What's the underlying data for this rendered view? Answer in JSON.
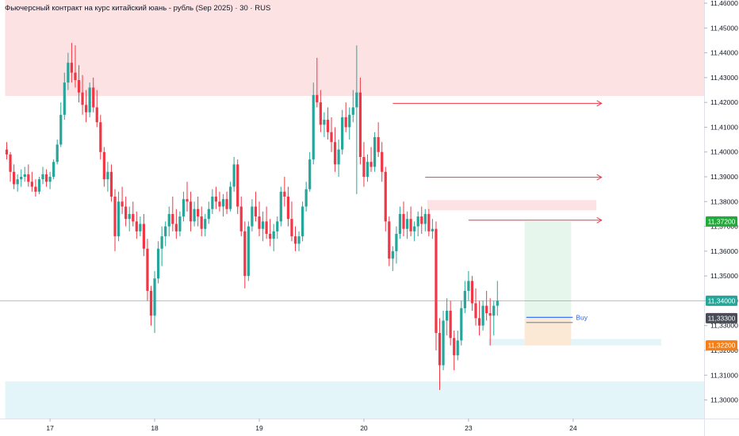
{
  "title": "Фьючерсный контракт на курс китайский юань - рубль (Sep 2025) · 30 · RUS",
  "colors": {
    "up": "#26a69a",
    "down": "#f23645",
    "supply_zone": "#fde2e4",
    "demand_zone": "#e3f5f8",
    "target_zone": "#e6f6ec",
    "stop_zone": "#fbe9d6",
    "current_line": "#26a69a",
    "level_arrow": "#f23645",
    "entry_line": "#2962ff",
    "axis_border": "#e0e3eb"
  },
  "chart_data": {
    "type": "candlestick",
    "ylim": [
      11.2925,
      11.4613
    ],
    "y_ticks": [
      "11,46000",
      "11,45000",
      "11,44000",
      "11,43000",
      "11,42000",
      "11,41000",
      "11,40000",
      "11,39000",
      "11,38000",
      "11,37000",
      "11,36000",
      "11,35000",
      "11,34000",
      "11,33000",
      "11,32000",
      "11,31000",
      "11,30000"
    ],
    "x_ticks": [
      {
        "label": "17",
        "bar": 12
      },
      {
        "label": "18",
        "bar": 41
      },
      {
        "label": "19",
        "bar": 70
      },
      {
        "label": "20",
        "bar": 99
      },
      {
        "label": "23",
        "bar": 128
      },
      {
        "label": "24",
        "bar": 157
      }
    ],
    "bar_count": 183,
    "candles": [
      [
        11.401,
        11.404,
        11.397,
        11.399
      ],
      [
        11.399,
        11.4,
        11.388,
        11.392
      ],
      [
        11.392,
        11.395,
        11.385,
        11.387
      ],
      [
        11.387,
        11.391,
        11.384,
        11.389
      ],
      [
        11.389,
        11.393,
        11.386,
        11.39
      ],
      [
        11.39,
        11.394,
        11.388,
        11.391
      ],
      [
        11.391,
        11.395,
        11.386,
        11.388
      ],
      [
        11.388,
        11.392,
        11.384,
        11.386
      ],
      [
        11.386,
        11.389,
        11.382,
        11.384
      ],
      [
        11.384,
        11.39,
        11.383,
        11.389
      ],
      [
        11.389,
        11.394,
        11.387,
        11.391
      ],
      [
        11.391,
        11.393,
        11.386,
        11.388
      ],
      [
        11.388,
        11.392,
        11.385,
        11.39
      ],
      [
        11.39,
        11.397,
        11.389,
        11.396
      ],
      [
        11.396,
        11.405,
        11.395,
        11.403
      ],
      [
        11.403,
        11.42,
        11.402,
        11.415
      ],
      [
        11.415,
        11.432,
        11.413,
        11.428
      ],
      [
        11.428,
        11.44,
        11.425,
        11.436
      ],
      [
        11.436,
        11.444,
        11.428,
        11.432
      ],
      [
        11.432,
        11.443,
        11.426,
        11.429
      ],
      [
        11.429,
        11.435,
        11.42,
        11.424
      ],
      [
        11.424,
        11.431,
        11.415,
        11.419
      ],
      [
        11.419,
        11.425,
        11.412,
        11.416
      ],
      [
        11.416,
        11.428,
        11.414,
        11.426
      ],
      [
        11.426,
        11.43,
        11.416,
        11.418
      ],
      [
        11.418,
        11.425,
        11.41,
        11.412
      ],
      [
        11.412,
        11.415,
        11.397,
        11.4
      ],
      [
        11.4,
        11.402,
        11.386,
        11.389
      ],
      [
        11.389,
        11.396,
        11.384,
        11.392
      ],
      [
        11.392,
        11.395,
        11.38,
        11.382
      ],
      [
        11.382,
        11.385,
        11.36,
        11.366
      ],
      [
        11.366,
        11.384,
        11.364,
        11.38
      ],
      [
        11.38,
        11.386,
        11.375,
        11.378
      ],
      [
        11.378,
        11.382,
        11.37,
        11.373
      ],
      [
        11.373,
        11.378,
        11.368,
        11.375
      ],
      [
        11.375,
        11.38,
        11.37,
        11.372
      ],
      [
        11.372,
        11.376,
        11.365,
        11.368
      ],
      [
        11.368,
        11.374,
        11.366,
        11.371
      ],
      [
        11.371,
        11.375,
        11.358,
        11.361
      ],
      [
        11.361,
        11.365,
        11.34,
        11.344
      ],
      [
        11.344,
        11.346,
        11.33,
        11.334
      ],
      [
        11.334,
        11.352,
        11.327,
        11.349
      ],
      [
        11.349,
        11.364,
        11.347,
        11.361
      ],
      [
        11.361,
        11.37,
        11.354,
        11.366
      ],
      [
        11.366,
        11.372,
        11.362,
        11.37
      ],
      [
        11.37,
        11.378,
        11.366,
        11.375
      ],
      [
        11.375,
        11.382,
        11.368,
        11.371
      ],
      [
        11.371,
        11.377,
        11.365,
        11.368
      ],
      [
        11.368,
        11.376,
        11.366,
        11.374
      ],
      [
        11.374,
        11.384,
        11.372,
        11.381
      ],
      [
        11.381,
        11.388,
        11.376,
        11.38
      ],
      [
        11.38,
        11.384,
        11.368,
        11.372
      ],
      [
        11.372,
        11.38,
        11.37,
        11.377
      ],
      [
        11.377,
        11.382,
        11.37,
        11.374
      ],
      [
        11.374,
        11.378,
        11.366,
        11.369
      ],
      [
        11.369,
        11.375,
        11.366,
        11.373
      ],
      [
        11.373,
        11.38,
        11.371,
        11.377
      ],
      [
        11.377,
        11.385,
        11.375,
        11.382
      ],
      [
        11.382,
        11.386,
        11.377,
        11.38
      ],
      [
        11.38,
        11.384,
        11.376,
        11.378
      ],
      [
        11.378,
        11.383,
        11.374,
        11.381
      ],
      [
        11.381,
        11.384,
        11.375,
        11.377
      ],
      [
        11.377,
        11.388,
        11.376,
        11.386
      ],
      [
        11.386,
        11.398,
        11.384,
        11.395
      ],
      [
        11.395,
        11.397,
        11.375,
        11.378
      ],
      [
        11.378,
        11.382,
        11.366,
        11.368
      ],
      [
        11.368,
        11.372,
        11.345,
        11.35
      ],
      [
        11.35,
        11.372,
        11.348,
        11.37
      ],
      [
        11.37,
        11.381,
        11.368,
        11.378
      ],
      [
        11.378,
        11.384,
        11.372,
        11.374
      ],
      [
        11.374,
        11.38,
        11.366,
        11.369
      ],
      [
        11.369,
        11.376,
        11.364,
        11.372
      ],
      [
        11.372,
        11.378,
        11.365,
        11.367
      ],
      [
        11.367,
        11.373,
        11.362,
        11.365
      ],
      [
        11.365,
        11.371,
        11.36,
        11.368
      ],
      [
        11.368,
        11.374,
        11.365,
        11.372
      ],
      [
        11.372,
        11.386,
        11.37,
        11.384
      ],
      [
        11.384,
        11.39,
        11.378,
        11.382
      ],
      [
        11.382,
        11.386,
        11.37,
        11.373
      ],
      [
        11.373,
        11.38,
        11.364,
        11.366
      ],
      [
        11.366,
        11.37,
        11.36,
        11.363
      ],
      [
        11.363,
        11.368,
        11.36,
        11.366
      ],
      [
        11.366,
        11.38,
        11.364,
        11.378
      ],
      [
        11.378,
        11.388,
        11.376,
        11.385
      ],
      [
        11.385,
        11.4,
        11.384,
        11.397
      ],
      [
        11.397,
        11.428,
        11.395,
        11.423
      ],
      [
        11.423,
        11.438,
        11.418,
        11.42
      ],
      [
        11.42,
        11.425,
        11.408,
        11.411
      ],
      [
        11.411,
        11.416,
        11.406,
        11.413
      ],
      [
        11.413,
        11.418,
        11.405,
        11.408
      ],
      [
        11.408,
        11.414,
        11.4,
        11.404
      ],
      [
        11.404,
        11.41,
        11.392,
        11.395
      ],
      [
        11.395,
        11.405,
        11.39,
        11.401
      ],
      [
        11.401,
        11.417,
        11.399,
        11.414
      ],
      [
        11.414,
        11.42,
        11.408,
        11.41
      ],
      [
        11.41,
        11.418,
        11.405,
        11.415
      ],
      [
        11.415,
        11.425,
        11.412,
        11.418
      ],
      [
        11.418,
        11.443,
        11.383,
        11.424
      ],
      [
        11.424,
        11.43,
        11.395,
        11.398
      ],
      [
        11.398,
        11.404,
        11.386,
        11.39
      ],
      [
        11.39,
        11.399,
        11.388,
        11.396
      ],
      [
        11.396,
        11.402,
        11.392,
        11.394
      ],
      [
        11.394,
        11.408,
        11.392,
        11.406
      ],
      [
        11.406,
        11.412,
        11.398,
        11.4
      ],
      [
        11.4,
        11.404,
        11.388,
        11.392
      ],
      [
        11.392,
        11.394,
        11.368,
        11.372
      ],
      [
        11.372,
        11.374,
        11.354,
        11.357
      ],
      [
        11.357,
        11.362,
        11.352,
        11.36
      ],
      [
        11.36,
        11.37,
        11.355,
        11.367
      ],
      [
        11.367,
        11.378,
        11.365,
        11.375
      ],
      [
        11.375,
        11.38,
        11.366,
        11.369
      ],
      [
        11.369,
        11.376,
        11.365,
        11.373
      ],
      [
        11.373,
        11.378,
        11.366,
        11.368
      ],
      [
        11.368,
        11.372,
        11.364,
        11.37
      ],
      [
        11.37,
        11.376,
        11.366,
        11.374
      ],
      [
        11.374,
        11.378,
        11.367,
        11.371
      ],
      [
        11.371,
        11.377,
        11.368,
        11.375
      ],
      [
        11.375,
        11.377,
        11.366,
        11.368
      ],
      [
        11.368,
        11.373,
        11.365,
        11.369
      ],
      [
        11.369,
        11.372,
        11.32,
        11.327
      ],
      [
        11.327,
        11.333,
        11.304,
        11.314
      ],
      [
        11.314,
        11.336,
        11.312,
        11.332
      ],
      [
        11.332,
        11.341,
        11.326,
        11.336
      ],
      [
        11.336,
        11.34,
        11.322,
        11.325
      ],
      [
        11.325,
        11.328,
        11.312,
        11.318
      ],
      [
        11.318,
        11.328,
        11.316,
        11.324
      ],
      [
        11.324,
        11.34,
        11.322,
        11.337
      ],
      [
        11.337,
        11.348,
        11.335,
        11.344
      ],
      [
        11.344,
        11.352,
        11.34,
        11.348
      ],
      [
        11.348,
        11.35,
        11.336,
        11.339
      ],
      [
        11.339,
        11.345,
        11.33,
        11.333
      ],
      [
        11.333,
        11.34,
        11.326,
        11.33
      ],
      [
        11.33,
        11.34,
        11.328,
        11.338
      ],
      [
        11.338,
        11.344,
        11.332,
        11.335
      ],
      [
        11.335,
        11.341,
        11.322,
        11.334
      ],
      [
        11.334,
        11.34,
        11.326,
        11.338
      ],
      [
        11.338,
        11.348,
        11.334,
        11.34
      ]
    ],
    "zones": [
      {
        "name": "supply-zone",
        "bar_from": 0,
        "bar_to": 196,
        "y_high": 11.4613,
        "y_low": 11.4226,
        "color": "#fde2e4"
      },
      {
        "name": "demand-zone",
        "bar_from": 0,
        "bar_to": 196,
        "y_high": 11.3075,
        "y_low": 11.2925,
        "color": "#e3f5f8"
      },
      {
        "name": "small-supply-zone",
        "bar_from": 117,
        "bar_to": 163,
        "y_high": 11.3806,
        "y_low": 11.3765,
        "color": "#fde2e4"
      },
      {
        "name": "small-demand-zone",
        "bar_from": 134,
        "bar_to": 181,
        "y_high": 11.3246,
        "y_low": 11.322,
        "color": "#e3f5f8"
      },
      {
        "name": "target-zone",
        "bar_from": 144,
        "bar_to": 156,
        "y_high": 11.372,
        "y_low": 11.333,
        "color": "#e6f6ec"
      },
      {
        "name": "stop-zone",
        "bar_from": 144,
        "bar_to": 156,
        "y_high": 11.333,
        "y_low": 11.322,
        "color": "#fbe9d6"
      }
    ],
    "level_arrows": [
      {
        "bar_from": 107,
        "bar_to": 164,
        "y": 11.4196
      },
      {
        "bar_from": 116,
        "bar_to": 164,
        "y": 11.3898
      },
      {
        "bar_from": 128,
        "bar_to": 164,
        "y": 11.3725
      }
    ],
    "current_price": 11.34,
    "entry": {
      "label": "Buy",
      "bar_from": 144,
      "bar_to": 156,
      "y": 11.333,
      "y2": 11.3317
    },
    "price_tags": [
      {
        "text": "11,37200",
        "y": 11.372,
        "bg": "#22ab3a",
        "fg": "#ffffff"
      },
      {
        "text": "11,34000",
        "y": 11.34,
        "bg": "#26a69a",
        "fg": "#ffffff"
      },
      {
        "text": "11,33300",
        "y": 11.333,
        "bg": "#4a4d57",
        "fg": "#ffffff"
      },
      {
        "text": "11,32200",
        "y": 11.322,
        "bg": "#f57f17",
        "fg": "#ffffff"
      }
    ]
  }
}
